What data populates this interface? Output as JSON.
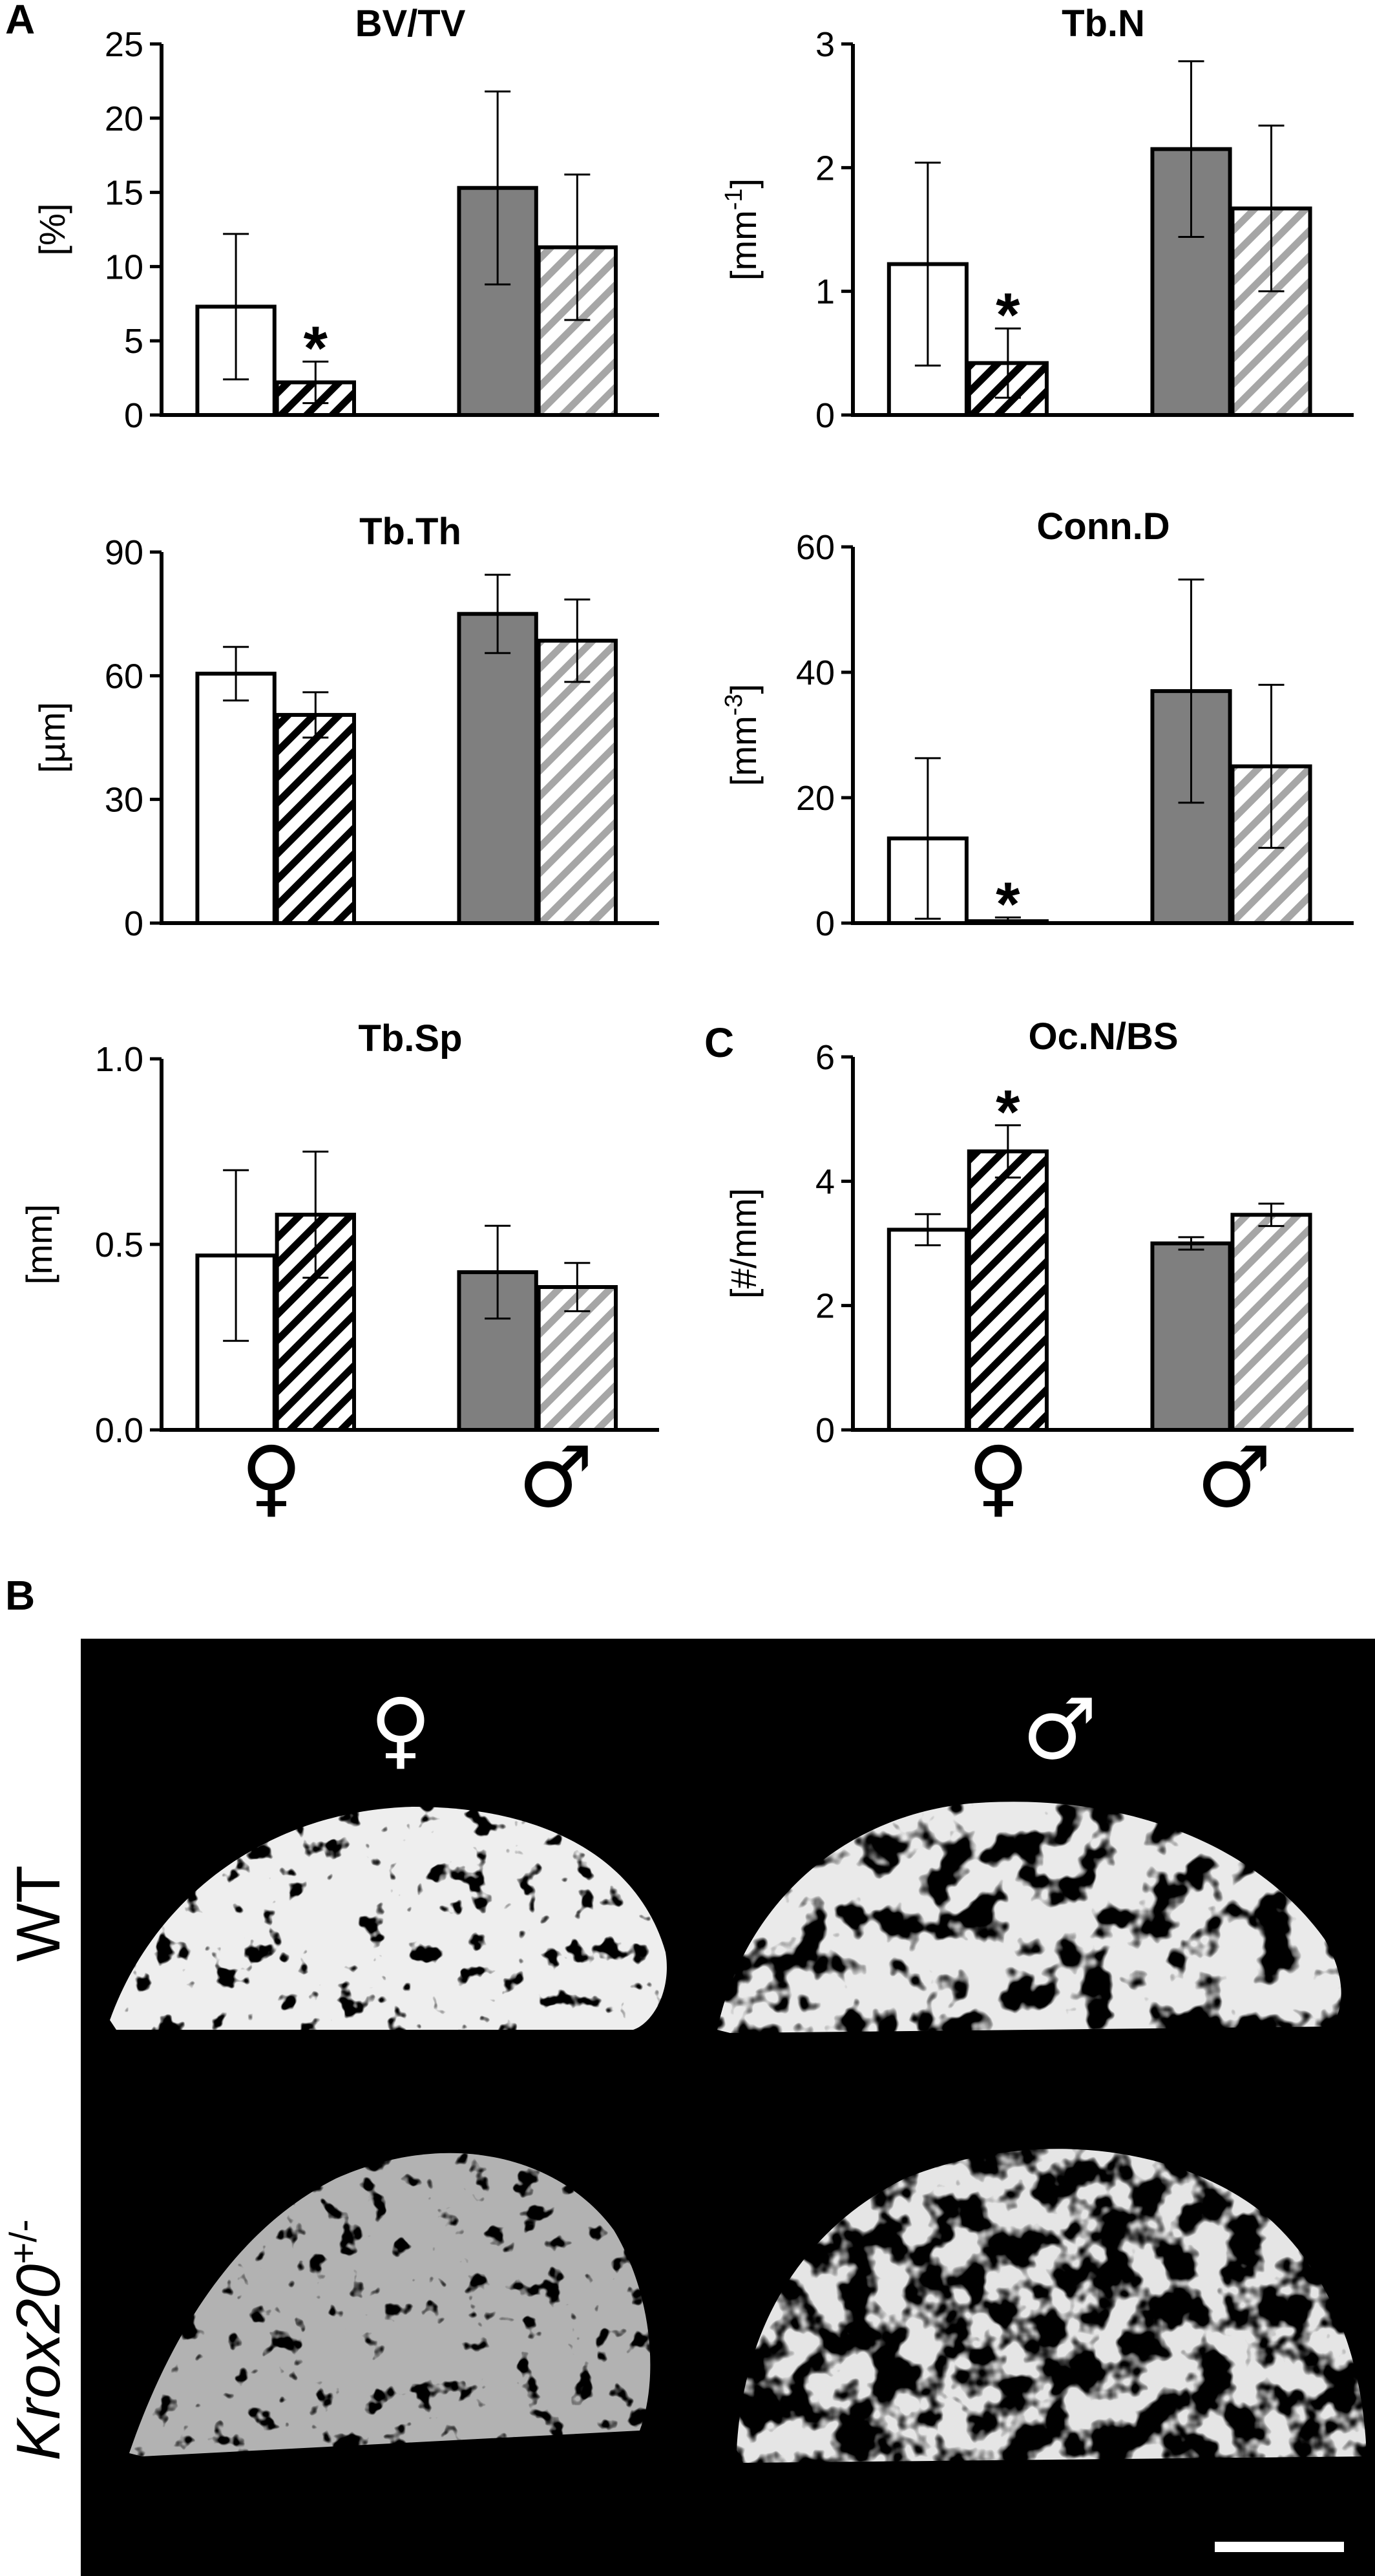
{
  "panel_letters": {
    "a": "A",
    "b": "B",
    "c": "C"
  },
  "sex_labels": {
    "female": "♀",
    "male": "♂"
  },
  "significance_marker": "*",
  "colors": {
    "wt_female": "#ffffff",
    "ko_female_hatch": "#000000",
    "wt_male": "#7f7f7f",
    "ko_male_hatch": "#a6a6a6",
    "edge": "#000000"
  },
  "bar_groups": [
    "WT ♀",
    "Krox20+/- ♀",
    "WT ♂",
    "Krox20+/- ♂"
  ],
  "chart_data": [
    {
      "type": "bar",
      "title": "BV/TV",
      "ylabel": "[%]",
      "ylim": [
        0,
        25
      ],
      "yticks": [
        "0",
        "5",
        "10",
        "15",
        "20",
        "25"
      ],
      "categories": [
        "♀",
        "♂"
      ],
      "series": [
        {
          "values": [
            7.3,
            15.3
          ],
          "errors": [
            4.9,
            6.5
          ]
        },
        {
          "values": [
            2.2,
            11.3
          ],
          "errors": [
            1.4,
            4.9
          ]
        }
      ],
      "significant": [
        false,
        true,
        false,
        false
      ]
    },
    {
      "type": "bar",
      "title": "Tb.N",
      "ylabel": "[mm-1]",
      "ylim": [
        0,
        3
      ],
      "yticks": [
        "0",
        "1",
        "2",
        "3"
      ],
      "categories": [
        "♀",
        "♂"
      ],
      "series": [
        {
          "values": [
            1.22,
            2.15
          ],
          "errors": [
            0.82,
            0.71
          ]
        },
        {
          "values": [
            0.42,
            1.67
          ],
          "errors": [
            0.28,
            0.67
          ]
        }
      ],
      "significant": [
        false,
        true,
        false,
        false
      ]
    },
    {
      "type": "bar",
      "title": "Tb.Th",
      "ylabel": "[µm]",
      "ylim": [
        0,
        90
      ],
      "yticks": [
        "0",
        "30",
        "60",
        "90"
      ],
      "categories": [
        "♀",
        "♂"
      ],
      "series": [
        {
          "values": [
            60.5,
            75
          ],
          "errors": [
            6.5,
            9.5
          ]
        },
        {
          "values": [
            50.5,
            68.5
          ],
          "errors": [
            5.5,
            10
          ]
        }
      ],
      "significant": [
        false,
        false,
        false,
        false
      ]
    },
    {
      "type": "bar",
      "title": "Conn.D",
      "ylabel": "[mm-3]",
      "ylim": [
        0,
        60
      ],
      "yticks": [
        "0",
        "20",
        "40",
        "60"
      ],
      "categories": [
        "♀",
        "♂"
      ],
      "series": [
        {
          "values": [
            13.5,
            37
          ],
          "errors": [
            12.8,
            17.8
          ]
        },
        {
          "values": [
            0.3,
            25
          ],
          "errors": [
            0.6,
            13
          ]
        }
      ],
      "significant": [
        false,
        true,
        false,
        false
      ]
    },
    {
      "type": "bar",
      "title": "Tb.Sp",
      "ylabel": "[mm]",
      "ylim": [
        0,
        1.0
      ],
      "yticks": [
        "0.0",
        "0.5",
        "1.0"
      ],
      "categories": [
        "♀",
        "♂"
      ],
      "series": [
        {
          "values": [
            0.47,
            0.425
          ],
          "errors": [
            0.23,
            0.125
          ]
        },
        {
          "values": [
            0.58,
            0.385
          ],
          "errors": [
            0.17,
            0.065
          ]
        }
      ],
      "significant": [
        false,
        false,
        false,
        false
      ]
    },
    {
      "type": "bar",
      "title": "Oc.N/BS",
      "ylabel": "[#/mm]",
      "ylim": [
        0,
        6
      ],
      "yticks": [
        "0",
        "2",
        "4",
        "6"
      ],
      "categories": [
        "♀",
        "♂"
      ],
      "series": [
        {
          "values": [
            3.22,
            3.0
          ],
          "errors": [
            0.25,
            0.1
          ]
        },
        {
          "values": [
            4.48,
            3.46
          ],
          "errors": [
            0.42,
            0.18
          ]
        }
      ],
      "significant": [
        false,
        true,
        false,
        false
      ]
    }
  ],
  "micro_ct": {
    "row_labels": {
      "wt": "WT",
      "ko_base": "Krox20",
      "ko_sup": "+/-"
    },
    "column_labels": {
      "female": "♀",
      "male": "♂"
    },
    "scale_bar": true
  }
}
